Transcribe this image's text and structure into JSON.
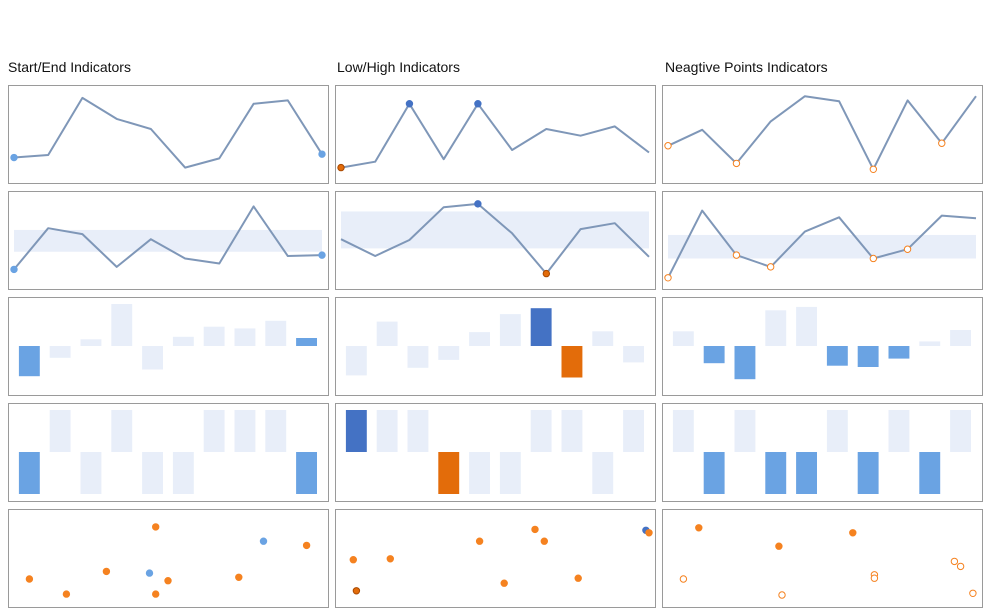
{
  "colors": {
    "line": "#7f97b8",
    "band": "#e8eef9",
    "bar_faint": "#e8eef9",
    "bar_blue": "#6aa3e3",
    "bar_dark_blue": "#4472c4",
    "orange": "#e36c0a",
    "orange_light": "#f58220",
    "frame": "#9a9a9a"
  },
  "columns": [
    {
      "title": "Start/End Indicators"
    },
    {
      "title": "Low/High Indicators"
    },
    {
      "title": "Neagtive Points Indicators"
    }
  ],
  "chart_data": [
    {
      "type": "line",
      "column": 0,
      "row": 0,
      "values": [
        22,
        25,
        93,
        68,
        56,
        10,
        21,
        86,
        90,
        26
      ],
      "ylim": [
        0,
        100
      ],
      "markers": [
        {
          "index": 0,
          "kind": "start"
        },
        {
          "index": 9,
          "kind": "end"
        }
      ]
    },
    {
      "type": "line",
      "column": 1,
      "row": 0,
      "values": [
        10,
        17,
        86,
        20,
        86,
        31,
        56,
        48,
        59,
        28
      ],
      "ylim": [
        0,
        100
      ],
      "markers": [
        {
          "index": 0,
          "kind": "low"
        },
        {
          "index": 2,
          "kind": "high"
        },
        {
          "index": 4,
          "kind": "high"
        }
      ]
    },
    {
      "type": "line",
      "column": 2,
      "row": 0,
      "values": [
        36,
        55,
        15,
        65,
        95,
        89,
        8,
        90,
        39,
        95
      ],
      "ylim": [
        0,
        100
      ],
      "markers": [
        {
          "index": 0,
          "kind": "negative"
        },
        {
          "index": 2,
          "kind": "negative"
        },
        {
          "index": 6,
          "kind": "negative"
        },
        {
          "index": 8,
          "kind": "negative"
        }
      ]
    },
    {
      "type": "line",
      "column": 0,
      "row": 1,
      "values": [
        15,
        64,
        57,
        18,
        51,
        28,
        22,
        90,
        31,
        32
      ],
      "ylim": [
        0,
        100
      ],
      "band": [
        62,
        36
      ],
      "markers": [
        {
          "index": 0,
          "kind": "start"
        },
        {
          "index": 9,
          "kind": "end"
        }
      ]
    },
    {
      "type": "line",
      "column": 1,
      "row": 1,
      "values": [
        51,
        31,
        50,
        89,
        93,
        58,
        10,
        63,
        70,
        30
      ],
      "ylim": [
        0,
        100
      ],
      "band": [
        84,
        40
      ],
      "markers": [
        {
          "index": 4,
          "kind": "high"
        },
        {
          "index": 6,
          "kind": "low"
        }
      ]
    },
    {
      "type": "line",
      "column": 2,
      "row": 1,
      "values": [
        5,
        85,
        32,
        18,
        60,
        77,
        28,
        39,
        79,
        76
      ],
      "ylim": [
        0,
        100
      ],
      "band": [
        56,
        28
      ],
      "markers": [
        {
          "index": 0,
          "kind": "negative"
        },
        {
          "index": 2,
          "kind": "negative"
        },
        {
          "index": 3,
          "kind": "negative"
        },
        {
          "index": 6,
          "kind": "negative"
        },
        {
          "index": 7,
          "kind": "negative"
        }
      ]
    },
    {
      "type": "bar",
      "column": 0,
      "row": 2,
      "values": [
        -72,
        -28,
        16,
        100,
        -56,
        22,
        46,
        42,
        60,
        19
      ],
      "ylim": [
        -100,
        100
      ],
      "highlight": {
        "0": "start",
        "9": "end"
      }
    },
    {
      "type": "bar",
      "column": 1,
      "row": 2,
      "values": [
        -70,
        58,
        -52,
        -33,
        33,
        76,
        90,
        -75,
        35,
        -39
      ],
      "ylim": [
        -100,
        100
      ],
      "highlight": {
        "6": "high",
        "7": "low"
      }
    },
    {
      "type": "bar",
      "column": 2,
      "row": 2,
      "values": [
        35,
        -41,
        -79,
        85,
        93,
        -47,
        -50,
        -30,
        11,
        38
      ],
      "ylim": [
        -100,
        100
      ],
      "highlight": {
        "1": "negative",
        "2": "negative",
        "5": "negative",
        "6": "negative",
        "7": "negative"
      }
    },
    {
      "type": "bar",
      "column": 0,
      "row": 3,
      "values": [
        -1,
        1,
        -1,
        1,
        -1,
        -1,
        1,
        1,
        1,
        -1
      ],
      "ylim": [
        -1,
        1
      ],
      "highlight": {
        "0": "start",
        "9": "end"
      }
    },
    {
      "type": "bar",
      "column": 1,
      "row": 3,
      "values": [
        1,
        1,
        1,
        -1,
        -1,
        -1,
        1,
        1,
        -1,
        1
      ],
      "ylim": [
        -1,
        1
      ],
      "highlight": {
        "0": "high",
        "3": "low"
      }
    },
    {
      "type": "bar",
      "column": 2,
      "row": 3,
      "values": [
        1,
        -1,
        1,
        -1,
        -1,
        1,
        -1,
        1,
        -1,
        1
      ],
      "ylim": [
        -1,
        1
      ],
      "highlight": {
        "1": "negative",
        "3": "negative",
        "4": "negative",
        "6": "negative",
        "8": "negative"
      }
    },
    {
      "type": "scatter",
      "column": 0,
      "row": 4,
      "points": [
        [
          0.05,
          0.25,
          "orange"
        ],
        [
          0.17,
          0.07,
          "orange"
        ],
        [
          0.3,
          0.34,
          "orange"
        ],
        [
          0.44,
          0.32,
          "start"
        ],
        [
          0.46,
          0.87,
          "orange"
        ],
        [
          0.5,
          0.23,
          "orange"
        ],
        [
          0.46,
          0.07,
          "orange"
        ],
        [
          0.73,
          0.27,
          "orange"
        ],
        [
          0.81,
          0.7,
          "end"
        ],
        [
          0.95,
          0.65,
          "orange"
        ]
      ]
    },
    {
      "type": "scatter",
      "column": 1,
      "row": 4,
      "points": [
        [
          0.04,
          0.48,
          "orange"
        ],
        [
          0.16,
          0.49,
          "orange"
        ],
        [
          0.45,
          0.7,
          "orange"
        ],
        [
          0.63,
          0.84,
          "orange"
        ],
        [
          0.66,
          0.7,
          "orange"
        ],
        [
          0.53,
          0.2,
          "orange"
        ],
        [
          0.77,
          0.26,
          "orange"
        ],
        [
          0.99,
          0.83,
          "high"
        ],
        [
          1.0,
          0.8,
          "orange"
        ],
        [
          0.05,
          0.11,
          "low"
        ]
      ]
    },
    {
      "type": "scatter",
      "column": 2,
      "row": 4,
      "points": [
        [
          0.1,
          0.86,
          "orange"
        ],
        [
          0.36,
          0.64,
          "orange"
        ],
        [
          0.6,
          0.8,
          "orange"
        ],
        [
          0.05,
          0.25,
          "negative"
        ],
        [
          0.37,
          0.06,
          "negative"
        ],
        [
          0.67,
          0.3,
          "negative"
        ],
        [
          0.67,
          0.26,
          "negative"
        ],
        [
          0.93,
          0.46,
          "negative"
        ],
        [
          0.95,
          0.4,
          "negative"
        ],
        [
          0.99,
          0.08,
          "negative"
        ]
      ]
    }
  ]
}
